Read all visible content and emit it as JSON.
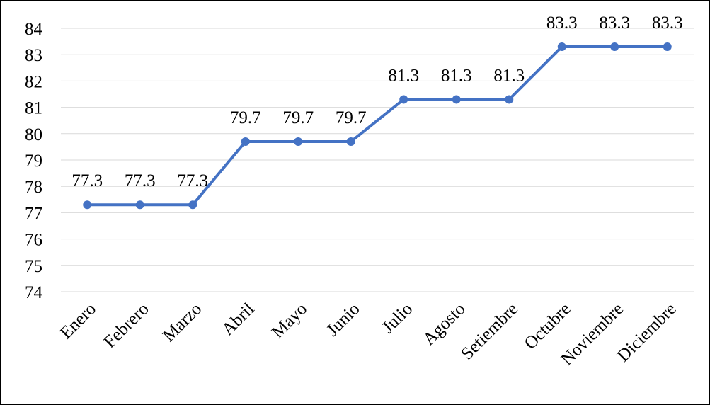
{
  "chart_data": {
    "type": "line",
    "categories": [
      "Enero",
      "Febrero",
      "Marzo",
      "Abril",
      "Mayo",
      "Junio",
      "Julio",
      "Agosto",
      "Setiembre",
      "Octubre",
      "Noviembre",
      "Diciembre"
    ],
    "series": [
      {
        "color": "#4472c4",
        "values": [
          77.3,
          77.3,
          77.3,
          79.7,
          79.7,
          79.7,
          81.3,
          81.3,
          81.3,
          83.3,
          83.3,
          83.3
        ]
      }
    ],
    "ylim": [
      74,
      84
    ],
    "yticks": [
      74,
      75,
      76,
      77,
      78,
      79,
      80,
      81,
      82,
      83,
      84
    ],
    "grid": true,
    "data_labels": true
  }
}
